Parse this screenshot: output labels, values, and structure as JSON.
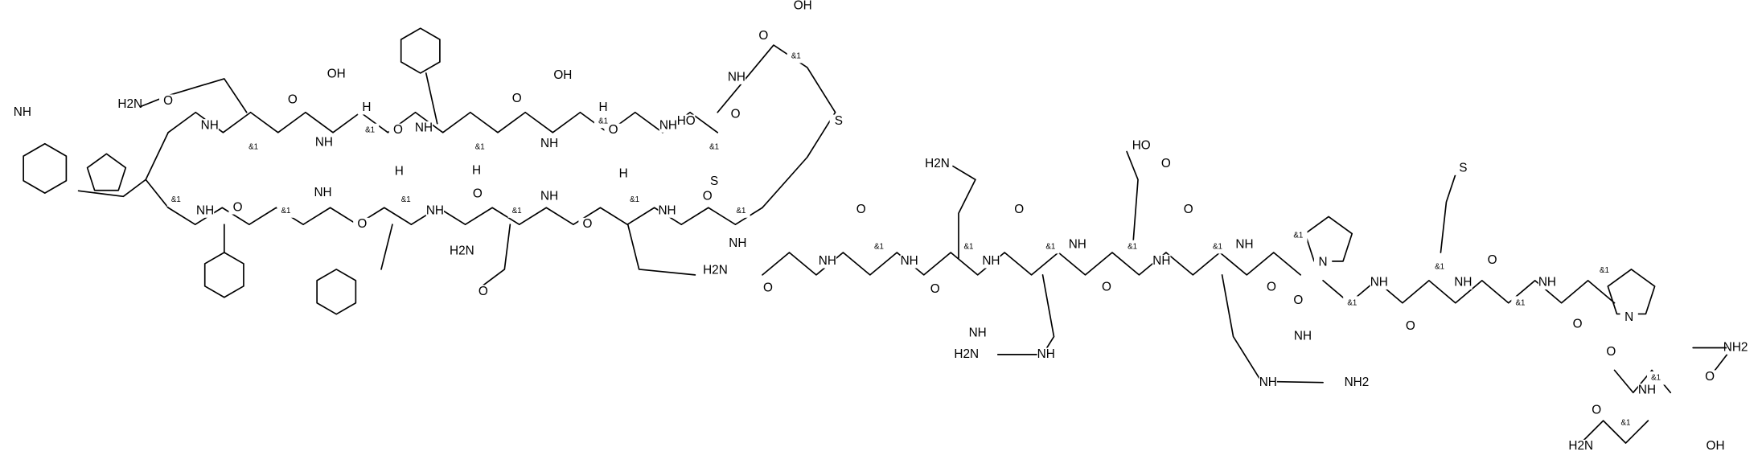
{
  "atoms": [
    "H2N",
    "O",
    "NH",
    "&1",
    "O",
    "NH",
    "OH",
    "&1",
    "H",
    "O",
    "NH",
    "O",
    "&1",
    "H",
    "NH",
    "OH",
    "&1",
    "H",
    "O",
    "NH",
    "HO",
    "O",
    "&1",
    "NH",
    "O",
    "OH",
    "&1",
    "S",
    "S",
    "NH",
    "&1",
    "NH",
    "O",
    "&1",
    "NH",
    "O",
    "&1",
    "H",
    "NH",
    "O",
    "&1",
    "NH",
    "O",
    "&1",
    "H",
    "NH",
    "O",
    "&1",
    "H2N",
    "O",
    "NH",
    "H2N",
    "O",
    "NH",
    "O",
    "&1",
    "NH",
    "O",
    "H2N",
    "&1",
    "NH",
    "O",
    "&1",
    "NH",
    "O",
    "HO",
    "O",
    "&1",
    "NH",
    "O",
    "&1",
    "NH",
    "O",
    "NH",
    "H2N",
    "NH",
    "&1",
    "N",
    "O",
    "NH",
    "&1",
    "O",
    "S",
    "&1",
    "NH",
    "O",
    "&1",
    "NH",
    "O",
    "&1",
    "N",
    "O",
    "NH2",
    "O",
    "NH",
    "&1",
    "O",
    "&1",
    "H2N",
    "OH",
    "NH",
    "NH",
    "NH2"
  ]
}
